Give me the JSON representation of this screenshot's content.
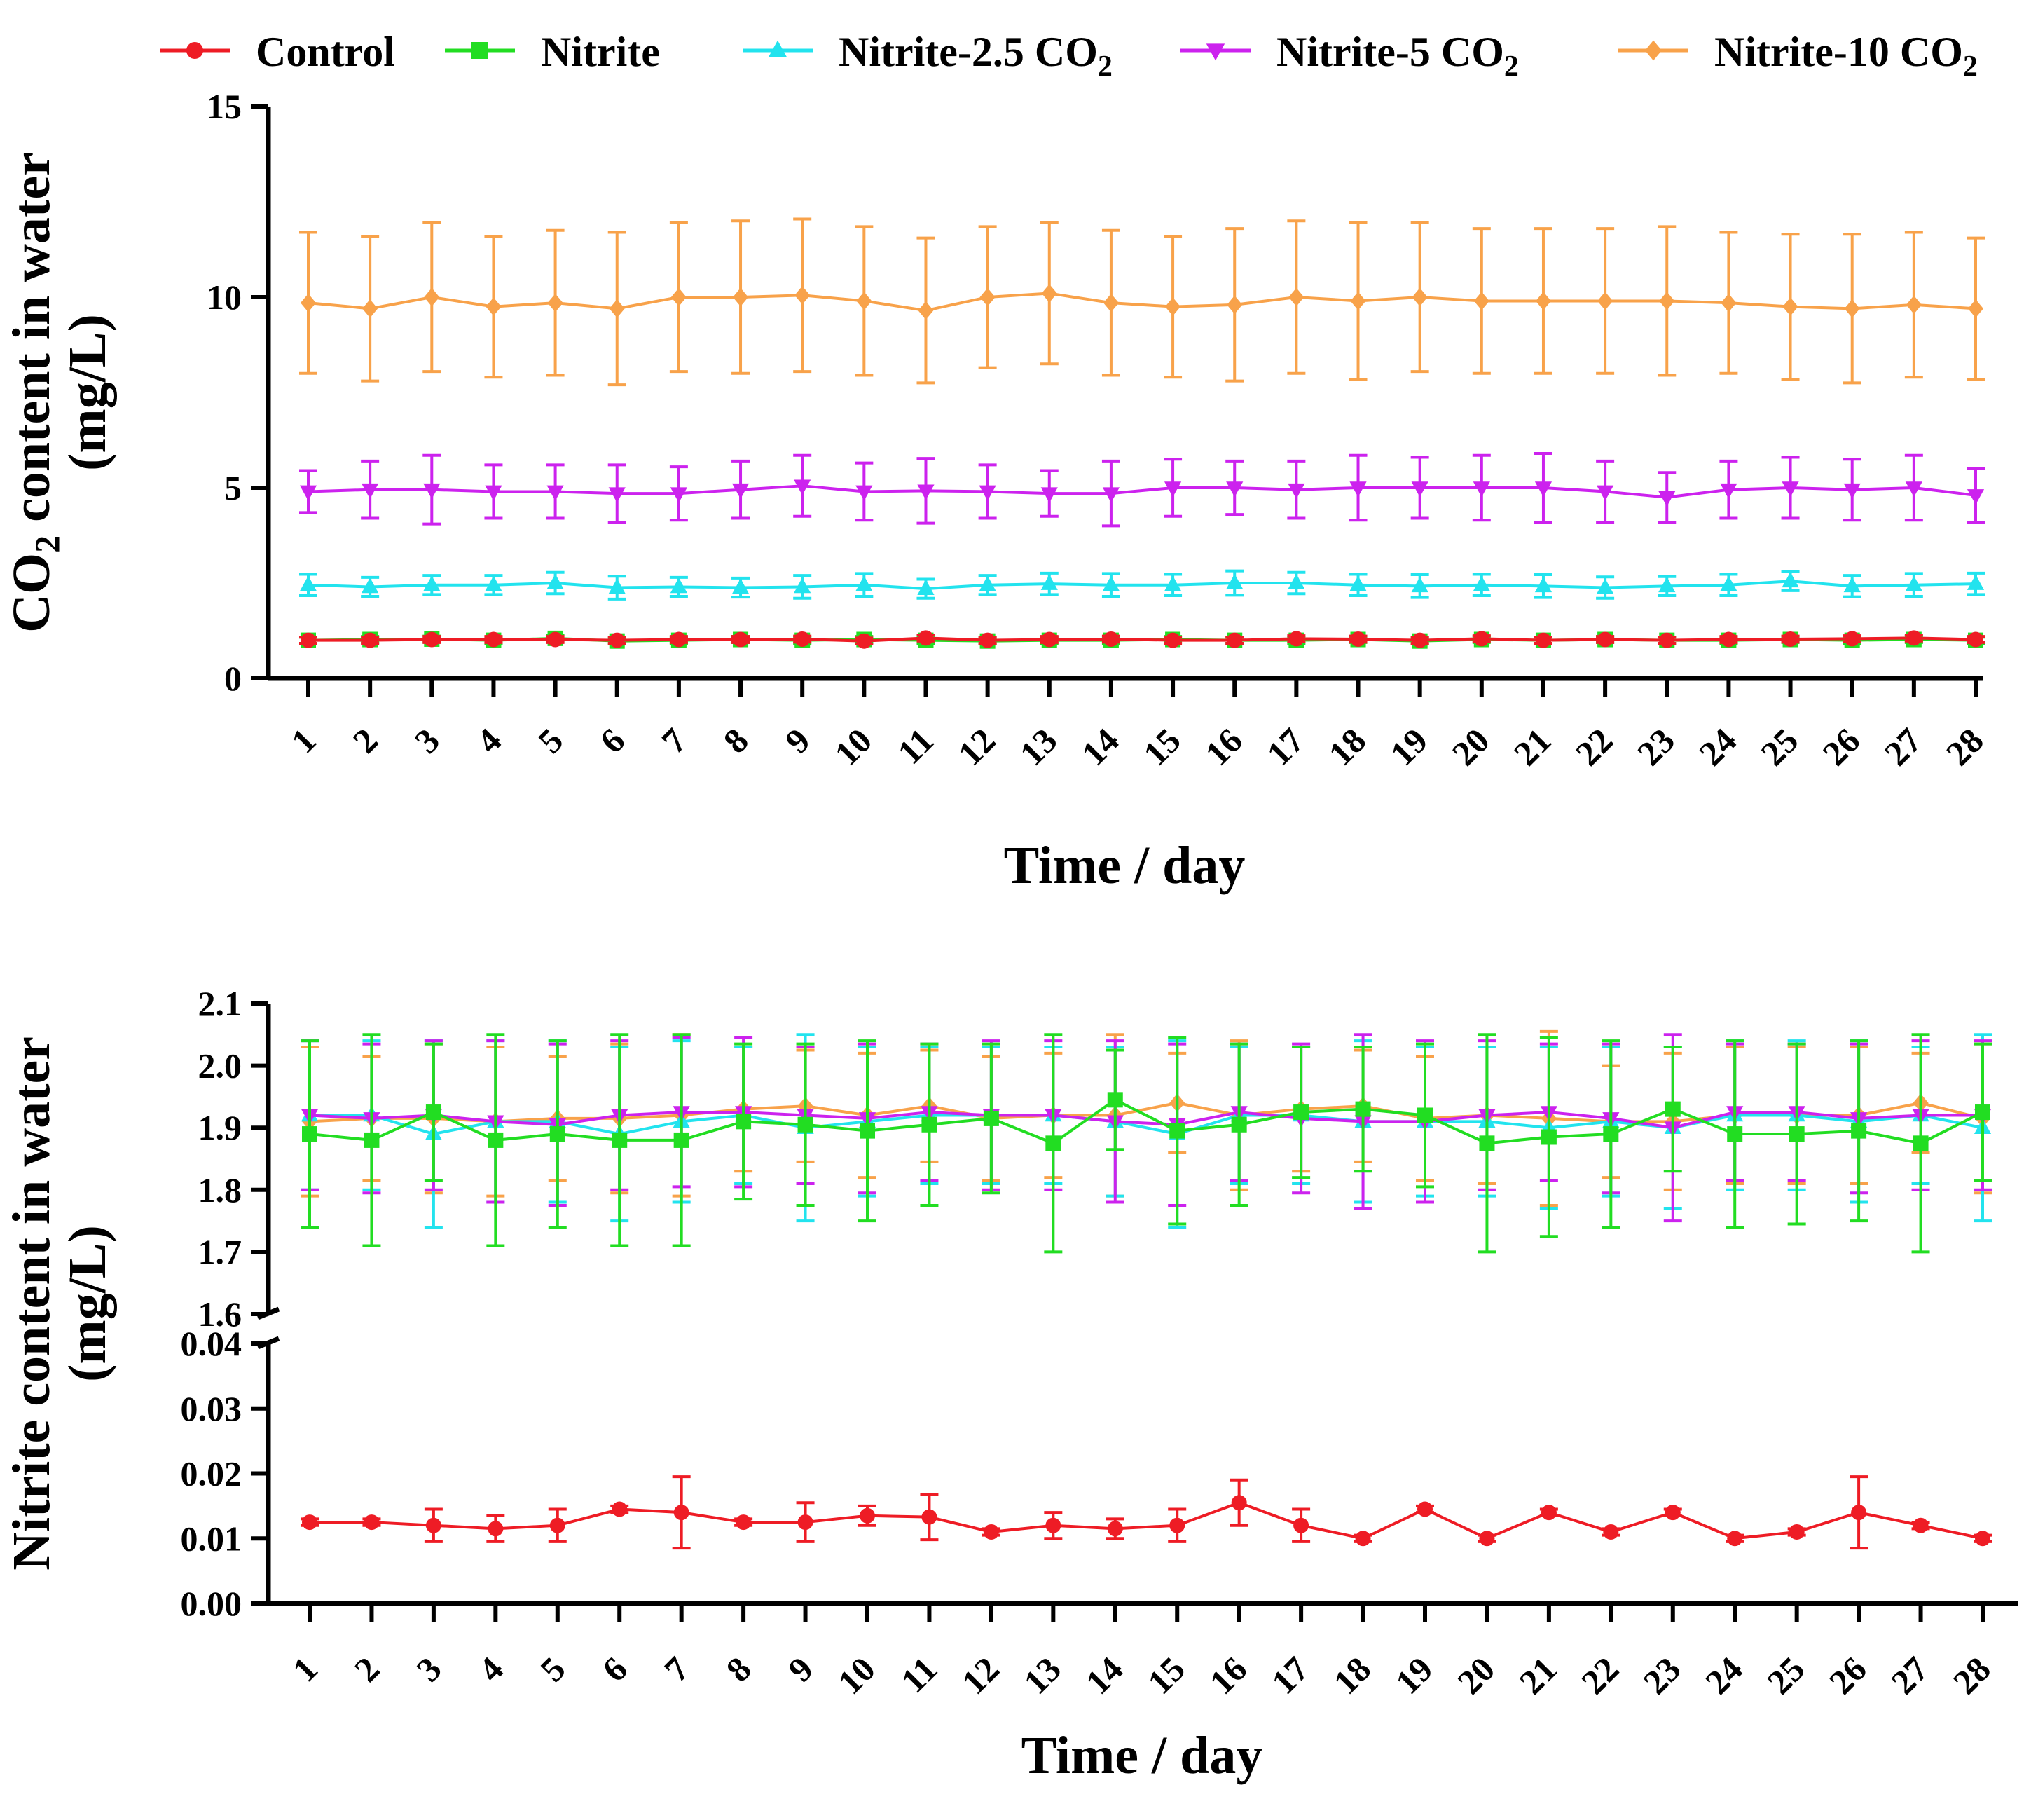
{
  "legend": [
    {
      "key": "control",
      "label": "Control",
      "sub": "",
      "color": "#ee1c25",
      "marker": "circle"
    },
    {
      "key": "nitrite",
      "label": "Nitrite",
      "sub": "",
      "color": "#22dd22",
      "marker": "square"
    },
    {
      "key": "n25",
      "label": "Nitrite-2.5 CO",
      "sub": "2",
      "color": "#22e3ee",
      "marker": "triangle-up"
    },
    {
      "key": "n5",
      "label": "Nitrite-5 CO",
      "sub": "2",
      "color": "#cc22ee",
      "marker": "triangle-down"
    },
    {
      "key": "n10",
      "label": "Nitrite-10 CO",
      "sub": "2",
      "color": "#f8a24a",
      "marker": "diamond"
    }
  ],
  "chart_data": [
    {
      "type": "line",
      "title": "",
      "xlabel": "Time / day",
      "ylabel": "CO2 content in water (mg/L)",
      "ylabel_parts": {
        "pre": "CO",
        "sub": "2",
        "post": " content in water",
        "line2": "(mg/L)"
      },
      "ylim": [
        0,
        15
      ],
      "yticks": [
        0,
        5,
        10,
        15
      ],
      "x": [
        1,
        2,
        3,
        4,
        5,
        6,
        7,
        8,
        9,
        10,
        11,
        12,
        13,
        14,
        15,
        16,
        17,
        18,
        19,
        20,
        21,
        22,
        23,
        24,
        25,
        26,
        27,
        28
      ],
      "series": [
        {
          "name": "Control",
          "values": [
            1.0,
            1.0,
            1.02,
            1.02,
            1.02,
            1.0,
            1.02,
            1.02,
            1.03,
            0.98,
            1.06,
            1.0,
            1.02,
            1.03,
            1.0,
            1.0,
            1.04,
            1.03,
            1.0,
            1.04,
            1.0,
            1.02,
            1.0,
            1.02,
            1.03,
            1.04,
            1.06,
            1.02
          ],
          "err": [
            0.08,
            0.08,
            0.08,
            0.08,
            0.08,
            0.08,
            0.08,
            0.08,
            0.08,
            0.08,
            0.08,
            0.08,
            0.08,
            0.08,
            0.08,
            0.08,
            0.08,
            0.08,
            0.08,
            0.08,
            0.08,
            0.08,
            0.08,
            0.08,
            0.08,
            0.08,
            0.08,
            0.08
          ]
        },
        {
          "name": "Nitrite",
          "values": [
            1.0,
            1.02,
            1.03,
            1.0,
            1.05,
            0.98,
            1.0,
            1.02,
            1.0,
            1.02,
            1.0,
            0.98,
            1.0,
            1.0,
            1.02,
            1.0,
            1.0,
            1.02,
            0.98,
            1.02,
            1.0,
            1.02,
            1.0,
            1.0,
            1.02,
            1.0,
            1.02,
            1.0
          ],
          "err": [
            0.08,
            0.08,
            0.08,
            0.08,
            0.08,
            0.08,
            0.08,
            0.08,
            0.08,
            0.08,
            0.08,
            0.08,
            0.08,
            0.08,
            0.08,
            0.08,
            0.08,
            0.08,
            0.08,
            0.08,
            0.08,
            0.08,
            0.08,
            0.08,
            0.08,
            0.08,
            0.08,
            0.08
          ]
        },
        {
          "name": "Nitrite-2.5 CO2",
          "values": [
            2.45,
            2.4,
            2.45,
            2.45,
            2.5,
            2.38,
            2.4,
            2.38,
            2.4,
            2.45,
            2.35,
            2.45,
            2.48,
            2.45,
            2.45,
            2.5,
            2.5,
            2.45,
            2.42,
            2.45,
            2.42,
            2.38,
            2.42,
            2.45,
            2.55,
            2.42,
            2.45,
            2.48
          ],
          "err": [
            0.28,
            0.25,
            0.25,
            0.25,
            0.28,
            0.3,
            0.25,
            0.25,
            0.3,
            0.3,
            0.25,
            0.25,
            0.28,
            0.3,
            0.28,
            0.32,
            0.28,
            0.28,
            0.3,
            0.28,
            0.3,
            0.28,
            0.25,
            0.28,
            0.25,
            0.28,
            0.3,
            0.28
          ]
        },
        {
          "name": "Nitrite-5 CO2",
          "values": [
            4.9,
            4.95,
            4.95,
            4.9,
            4.9,
            4.85,
            4.85,
            4.95,
            5.05,
            4.9,
            4.92,
            4.9,
            4.85,
            4.85,
            5.0,
            5.0,
            4.95,
            5.0,
            5.0,
            5.0,
            5.0,
            4.9,
            4.75,
            4.95,
            5.0,
            4.95,
            5.0,
            4.8
          ],
          "err": [
            0.55,
            0.75,
            0.9,
            0.7,
            0.7,
            0.75,
            0.7,
            0.75,
            0.8,
            0.75,
            0.85,
            0.7,
            0.6,
            0.85,
            0.75,
            0.7,
            0.75,
            0.85,
            0.8,
            0.85,
            0.9,
            0.8,
            0.65,
            0.75,
            0.8,
            0.8,
            0.85,
            0.7
          ]
        },
        {
          "name": "Nitrite-10 CO2",
          "values": [
            9.85,
            9.7,
            10.0,
            9.75,
            9.85,
            9.7,
            10.0,
            10.0,
            10.05,
            9.9,
            9.65,
            10.0,
            10.1,
            9.85,
            9.75,
            9.8,
            10.0,
            9.9,
            10.0,
            9.9,
            9.9,
            9.9,
            9.9,
            9.85,
            9.75,
            9.7,
            9.8,
            9.7
          ],
          "err": [
            1.85,
            1.9,
            1.95,
            1.85,
            1.9,
            2.0,
            1.95,
            2.0,
            2.0,
            1.95,
            1.9,
            1.85,
            1.85,
            1.9,
            1.85,
            2.0,
            2.0,
            2.05,
            1.95,
            1.9,
            1.9,
            1.9,
            1.95,
            1.85,
            1.9,
            1.95,
            1.9,
            1.85
          ]
        }
      ]
    },
    {
      "type": "line",
      "title": "",
      "xlabel": "Time / day",
      "ylabel": "Nitrite content in water (mg/L)",
      "ylabel_parts": {
        "line1": "Nitrite content in water",
        "line2": "(mg/L)"
      },
      "y_break": true,
      "ylim_upper": [
        1.6,
        2.1
      ],
      "yticks_upper": [
        "1.6",
        "1.7",
        "1.8",
        "1.9",
        "2.0",
        "2.1"
      ],
      "ylim_lower": [
        0,
        0.04
      ],
      "yticks_lower": [
        "0.00",
        "0.01",
        "0.02",
        "0.03",
        "0.04"
      ],
      "x": [
        1,
        2,
        3,
        4,
        5,
        6,
        7,
        8,
        9,
        10,
        11,
        12,
        13,
        14,
        15,
        16,
        17,
        18,
        19,
        20,
        21,
        22,
        23,
        24,
        25,
        26,
        27,
        28
      ],
      "series": [
        {
          "name": "Control",
          "values": [
            0.0125,
            0.0125,
            0.012,
            0.0115,
            0.012,
            0.0145,
            0.014,
            0.0125,
            0.0125,
            0.0135,
            0.0133,
            0.011,
            0.012,
            0.0115,
            0.012,
            0.0155,
            0.012,
            0.01,
            0.0145,
            0.01,
            0.014,
            0.011,
            0.014,
            0.01,
            0.011,
            0.014,
            0.012,
            0.01
          ],
          "err": [
            0.0005,
            0.0005,
            0.0025,
            0.002,
            0.0025,
            0.0005,
            0.0055,
            0.0005,
            0.003,
            0.0015,
            0.0035,
            0.0005,
            0.002,
            0.0015,
            0.0025,
            0.0035,
            0.0025,
            0.0005,
            0.0005,
            0.0005,
            0.0005,
            0.0005,
            0.0005,
            0.0005,
            0.0005,
            0.0055,
            0.0005,
            0.0005
          ]
        },
        {
          "name": "Nitrite",
          "values": [
            1.89,
            1.88,
            1.925,
            1.88,
            1.89,
            1.88,
            1.88,
            1.91,
            1.905,
            1.895,
            1.905,
            1.915,
            1.875,
            1.945,
            1.895,
            1.905,
            1.925,
            1.93,
            1.92,
            1.875,
            1.885,
            1.89,
            1.93,
            1.89,
            1.89,
            1.895,
            1.875,
            1.925
          ],
          "err": [
            0.15,
            0.17,
            0.11,
            0.17,
            0.15,
            0.17,
            0.17,
            0.125,
            0.13,
            0.145,
            0.13,
            0.12,
            0.175,
            0.08,
            0.15,
            0.13,
            0.105,
            0.1,
            0.115,
            0.175,
            0.16,
            0.15,
            0.1,
            0.15,
            0.145,
            0.145,
            0.175,
            0.11
          ]
        },
        {
          "name": "Nitrite-2.5 CO2",
          "values": [
            1.92,
            1.92,
            1.89,
            1.91,
            1.91,
            1.89,
            1.91,
            1.92,
            1.9,
            1.91,
            1.92,
            1.92,
            1.92,
            1.91,
            1.89,
            1.92,
            1.92,
            1.91,
            1.91,
            1.91,
            1.9,
            1.91,
            1.9,
            1.92,
            1.92,
            1.91,
            1.92,
            1.9
          ],
          "err": [
            0.12,
            0.12,
            0.15,
            0.13,
            0.13,
            0.14,
            0.13,
            0.11,
            0.15,
            0.12,
            0.11,
            0.11,
            0.11,
            0.12,
            0.15,
            0.11,
            0.11,
            0.13,
            0.12,
            0.12,
            0.13,
            0.12,
            0.13,
            0.12,
            0.12,
            0.13,
            0.11,
            0.15
          ]
        },
        {
          "name": "Nitrite-5 CO2",
          "values": [
            1.92,
            1.915,
            1.92,
            1.91,
            1.905,
            1.92,
            1.925,
            1.925,
            1.92,
            1.915,
            1.925,
            1.92,
            1.92,
            1.91,
            1.905,
            1.925,
            1.915,
            1.91,
            1.91,
            1.92,
            1.925,
            1.915,
            1.9,
            1.925,
            1.925,
            1.915,
            1.92,
            1.92
          ],
          "err": [
            0.12,
            0.12,
            0.12,
            0.13,
            0.13,
            0.12,
            0.12,
            0.12,
            0.11,
            0.12,
            0.11,
            0.12,
            0.12,
            0.13,
            0.13,
            0.11,
            0.12,
            0.14,
            0.13,
            0.12,
            0.11,
            0.12,
            0.15,
            0.11,
            0.11,
            0.12,
            0.12,
            0.12
          ]
        },
        {
          "name": "Nitrite-10 CO2",
          "values": [
            1.91,
            1.915,
            1.915,
            1.91,
            1.915,
            1.915,
            1.92,
            1.93,
            1.935,
            1.92,
            1.935,
            1.915,
            1.92,
            1.92,
            1.94,
            1.92,
            1.93,
            1.935,
            1.915,
            1.92,
            1.915,
            1.91,
            1.91,
            1.92,
            1.92,
            1.92,
            1.94,
            1.915
          ],
          "err": [
            0.12,
            0.1,
            0.12,
            0.12,
            0.1,
            0.12,
            0.13,
            0.1,
            0.09,
            0.1,
            0.09,
            0.1,
            0.1,
            0.13,
            0.08,
            0.12,
            0.1,
            0.09,
            0.1,
            0.11,
            0.14,
            0.09,
            0.11,
            0.11,
            0.11,
            0.11,
            0.08,
            0.12
          ]
        }
      ]
    }
  ]
}
